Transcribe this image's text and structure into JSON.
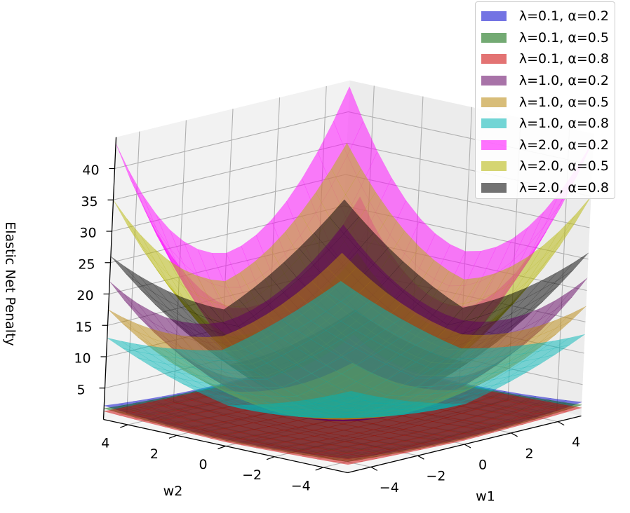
{
  "chart_data": {
    "type": "surface3d",
    "title": "",
    "xlabel": "w1",
    "ylabel": "w2",
    "zlabel": "Elastic Net Penalty",
    "x_ticks": [
      -4,
      -2,
      0,
      2,
      4
    ],
    "y_ticks": [
      -4,
      -2,
      0,
      2,
      4
    ],
    "z_ticks": [
      5,
      10,
      15,
      20,
      25,
      30,
      35,
      40
    ],
    "xlim": [
      -5,
      5
    ],
    "ylim": [
      -5,
      5
    ],
    "zlim": [
      0,
      45
    ],
    "grid": true,
    "legend_position": "top-right",
    "formula": "lambda*(alpha*(|w1|+|w2|) + (1-alpha)/2*(w1^2+w2^2))",
    "series": [
      {
        "name": "λ=0.1, α=0.2",
        "lambda": 0.1,
        "alpha": 0.2,
        "color": "#0000cc"
      },
      {
        "name": "λ=0.1, α=0.5",
        "lambda": 0.1,
        "alpha": 0.5,
        "color": "#006400"
      },
      {
        "name": "λ=0.1, α=0.8",
        "lambda": 0.1,
        "alpha": 0.8,
        "color": "#cc0000"
      },
      {
        "name": "λ=1.0, α=0.2",
        "lambda": 1.0,
        "alpha": 0.2,
        "color": "#600060"
      },
      {
        "name": "λ=1.0, α=0.5",
        "lambda": 1.0,
        "alpha": 0.5,
        "color": "#b8860b"
      },
      {
        "name": "λ=1.0, α=0.8",
        "lambda": 1.0,
        "alpha": 0.8,
        "color": "#00b5b5"
      },
      {
        "name": "λ=2.0, α=0.2",
        "lambda": 2.0,
        "alpha": 0.2,
        "color": "#ff00ff"
      },
      {
        "name": "λ=2.0, α=0.5",
        "lambda": 2.0,
        "alpha": 0.5,
        "color": "#b5b500"
      },
      {
        "name": "λ=2.0, α=0.8",
        "lambda": 2.0,
        "alpha": 0.8,
        "color": "#000000"
      }
    ]
  }
}
